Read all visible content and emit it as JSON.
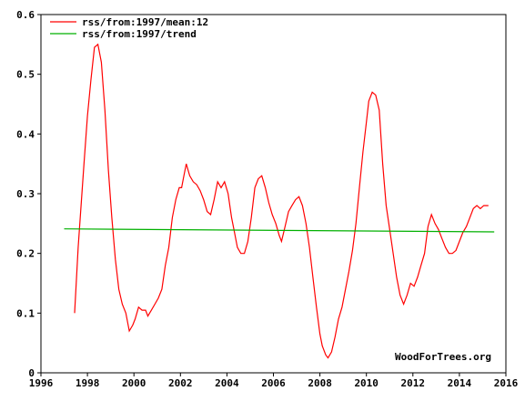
{
  "chart_data": {
    "type": "line",
    "title": "",
    "xlabel": "",
    "ylabel": "",
    "xlim": [
      1996,
      2016
    ],
    "ylim": [
      0,
      0.6
    ],
    "xticks": [
      "1996",
      "1998",
      "2000",
      "2002",
      "2004",
      "2006",
      "2008",
      "2010",
      "2012",
      "2014",
      "2016"
    ],
    "yticks": [
      "0",
      "0.1",
      "0.2",
      "0.3",
      "0.4",
      "0.5",
      "0.6"
    ],
    "grid": false,
    "legend_position": "top-left",
    "credit": "WoodForTrees.org",
    "series": [
      {
        "name": "rss/from:1997/mean:12",
        "color": "#ff0000",
        "x": [
          1997.45,
          1997.6,
          1997.85,
          1998.0,
          1998.15,
          1998.3,
          1998.45,
          1998.6,
          1998.75,
          1998.9,
          1999.05,
          1999.2,
          1999.35,
          1999.5,
          1999.65,
          1999.8,
          1999.95,
          2000.05,
          2000.2,
          2000.35,
          2000.5,
          2000.6,
          2000.75,
          2000.9,
          2001.05,
          2001.2,
          2001.35,
          2001.5,
          2001.65,
          2001.8,
          2001.95,
          2002.05,
          2002.15,
          2002.25,
          2002.4,
          2002.55,
          2002.7,
          2002.85,
          2003.0,
          2003.15,
          2003.3,
          2003.45,
          2003.6,
          2003.75,
          2003.9,
          2004.05,
          2004.2,
          2004.3,
          2004.45,
          2004.6,
          2004.75,
          2004.9,
          2005.05,
          2005.2,
          2005.35,
          2005.5,
          2005.65,
          2005.8,
          2005.95,
          2006.1,
          2006.25,
          2006.35,
          2006.5,
          2006.65,
          2006.8,
          2006.95,
          2007.1,
          2007.25,
          2007.4,
          2007.55,
          2007.7,
          2007.85,
          2008.0,
          2008.1,
          2008.25,
          2008.35,
          2008.5,
          2008.65,
          2008.8,
          2008.95,
          2009.1,
          2009.25,
          2009.4,
          2009.55,
          2009.7,
          2009.85,
          2010.0,
          2010.1,
          2010.25,
          2010.4,
          2010.55,
          2010.7,
          2010.85,
          2011.0,
          2011.15,
          2011.3,
          2011.45,
          2011.6,
          2011.75,
          2011.9,
          2012.05,
          2012.2,
          2012.35,
          2012.5,
          2012.65,
          2012.8,
          2012.95,
          2013.1,
          2013.25,
          2013.4,
          2013.55,
          2013.7,
          2013.85,
          2014.0,
          2014.15,
          2014.3,
          2014.45,
          2014.6,
          2014.75,
          2014.9,
          2015.05,
          2015.2,
          2015.25
        ],
        "y": [
          0.1,
          0.21,
          0.35,
          0.43,
          0.49,
          0.545,
          0.55,
          0.52,
          0.44,
          0.34,
          0.26,
          0.19,
          0.14,
          0.115,
          0.1,
          0.07,
          0.08,
          0.09,
          0.11,
          0.105,
          0.105,
          0.095,
          0.105,
          0.115,
          0.125,
          0.14,
          0.18,
          0.21,
          0.26,
          0.29,
          0.31,
          0.31,
          0.33,
          0.35,
          0.33,
          0.32,
          0.315,
          0.305,
          0.29,
          0.27,
          0.265,
          0.29,
          0.32,
          0.31,
          0.32,
          0.3,
          0.26,
          0.24,
          0.21,
          0.2,
          0.2,
          0.22,
          0.26,
          0.31,
          0.325,
          0.33,
          0.31,
          0.285,
          0.265,
          0.25,
          0.23,
          0.22,
          0.245,
          0.27,
          0.28,
          0.29,
          0.295,
          0.28,
          0.25,
          0.21,
          0.16,
          0.11,
          0.065,
          0.045,
          0.03,
          0.025,
          0.035,
          0.06,
          0.09,
          0.11,
          0.14,
          0.17,
          0.205,
          0.25,
          0.31,
          0.37,
          0.42,
          0.455,
          0.47,
          0.465,
          0.44,
          0.35,
          0.28,
          0.24,
          0.2,
          0.16,
          0.13,
          0.115,
          0.13,
          0.15,
          0.145,
          0.16,
          0.18,
          0.2,
          0.245,
          0.265,
          0.25,
          0.24,
          0.225,
          0.21,
          0.2,
          0.2,
          0.205,
          0.22,
          0.235,
          0.245,
          0.26,
          0.275,
          0.28,
          0.275,
          0.28,
          0.28,
          0.28
        ]
      },
      {
        "name": "rss/from:1997/trend",
        "color": "#00b000",
        "x": [
          1997.0,
          2015.5
        ],
        "y": [
          0.241,
          0.236
        ]
      }
    ]
  }
}
